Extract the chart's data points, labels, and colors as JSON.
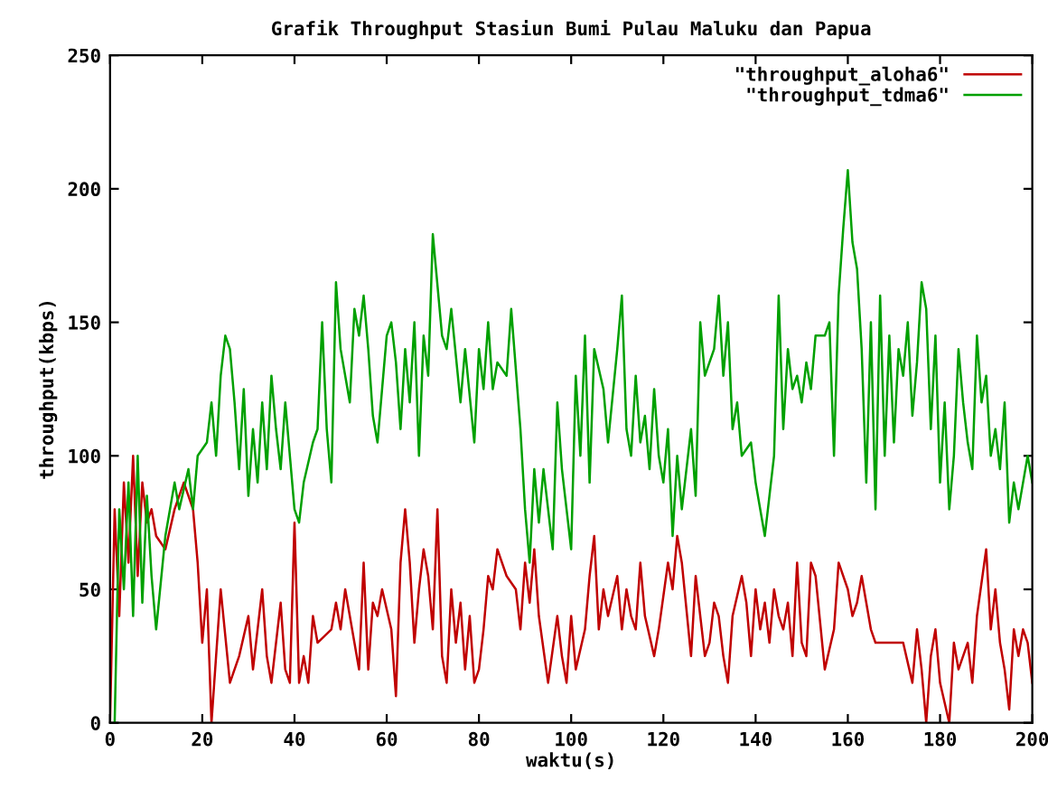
{
  "chart_data": {
    "type": "line",
    "title": "Grafik Throughput Stasiun Bumi Pulau Maluku dan Papua",
    "xlabel": "waktu(s)",
    "ylabel": "throughput(kbps)",
    "xlim": [
      0,
      200
    ],
    "xticks": [
      0,
      20,
      40,
      60,
      80,
      100,
      120,
      140,
      160,
      180,
      200
    ],
    "ylim": [
      0,
      250
    ],
    "yticks": [
      0,
      50,
      100,
      150,
      200,
      250
    ],
    "legend": "top right",
    "series": [
      {
        "name": "\"throughput_aloha6\"",
        "color": "#c00000",
        "x": [
          0,
          1,
          2,
          3,
          4,
          5,
          6,
          7,
          8,
          9,
          10,
          12,
          14,
          16,
          18,
          19,
          20,
          21,
          22,
          23,
          24,
          26,
          28,
          30,
          31,
          33,
          34,
          35,
          37,
          38,
          39,
          40,
          41,
          42,
          43,
          44,
          45,
          48,
          49,
          50,
          51,
          52,
          53,
          54,
          55,
          56,
          57,
          58,
          59,
          61,
          62,
          63,
          64,
          65,
          66,
          67,
          68,
          69,
          70,
          71,
          72,
          73,
          74,
          75,
          76,
          77,
          78,
          79,
          80,
          81,
          82,
          83,
          84,
          86,
          88,
          89,
          90,
          91,
          92,
          93,
          95,
          97,
          98,
          99,
          100,
          101,
          103,
          104,
          105,
          106,
          107,
          108,
          110,
          111,
          112,
          113,
          114,
          115,
          116,
          118,
          119,
          121,
          122,
          123,
          124,
          126,
          127,
          129,
          130,
          131,
          132,
          133,
          134,
          135,
          137,
          138,
          139,
          140,
          141,
          142,
          143,
          144,
          145,
          146,
          147,
          148,
          149,
          150,
          151,
          152,
          153,
          155,
          157,
          158,
          160,
          161,
          162,
          163,
          164,
          165,
          166,
          172,
          174,
          175,
          176,
          177,
          178,
          179,
          180,
          182,
          183,
          184,
          186,
          187,
          188,
          190,
          191,
          192,
          193,
          194,
          195,
          196,
          197,
          198,
          199,
          200
        ],
        "values": [
          0,
          80,
          40,
          90,
          60,
          100,
          55,
          90,
          75,
          80,
          70,
          65,
          80,
          90,
          80,
          60,
          30,
          50,
          0,
          25,
          50,
          15,
          25,
          40,
          20,
          50,
          25,
          15,
          45,
          20,
          15,
          75,
          15,
          25,
          15,
          40,
          30,
          35,
          45,
          35,
          50,
          40,
          30,
          20,
          60,
          20,
          45,
          40,
          50,
          35,
          10,
          60,
          80,
          60,
          30,
          50,
          65,
          55,
          35,
          80,
          25,
          15,
          50,
          30,
          45,
          20,
          40,
          15,
          20,
          35,
          55,
          50,
          65,
          55,
          50,
          35,
          60,
          45,
          65,
          40,
          15,
          40,
          25,
          15,
          40,
          20,
          35,
          55,
          70,
          35,
          50,
          40,
          55,
          35,
          50,
          40,
          35,
          60,
          40,
          25,
          35,
          60,
          50,
          70,
          60,
          25,
          55,
          25,
          30,
          45,
          40,
          25,
          15,
          40,
          55,
          45,
          25,
          50,
          35,
          45,
          30,
          50,
          40,
          35,
          45,
          25,
          60,
          30,
          25,
          60,
          55,
          20,
          35,
          60,
          50,
          40,
          45,
          55,
          45,
          35,
          30,
          30,
          15,
          35,
          20,
          0,
          25,
          35,
          15,
          0,
          30,
          20,
          30,
          15,
          40,
          65,
          35,
          50,
          30,
          20,
          5,
          35,
          25,
          35,
          30,
          15
        ]
      },
      {
        "name": "\"throughput_tdma6\"",
        "color": "#00a000",
        "x": [
          1,
          2,
          3,
          4,
          5,
          6,
          7,
          8,
          9,
          10,
          12,
          14,
          15,
          17,
          18,
          19,
          21,
          22,
          23,
          24,
          25,
          26,
          27,
          28,
          29,
          30,
          31,
          32,
          33,
          34,
          35,
          36,
          37,
          38,
          40,
          41,
          42,
          44,
          45,
          46,
          47,
          48,
          49,
          50,
          52,
          53,
          54,
          55,
          56,
          57,
          58,
          59,
          60,
          61,
          62,
          63,
          64,
          65,
          66,
          67,
          68,
          69,
          70,
          72,
          73,
          74,
          76,
          77,
          79,
          80,
          81,
          82,
          83,
          84,
          86,
          87,
          89,
          90,
          91,
          92,
          93,
          94,
          96,
          97,
          98,
          99,
          100,
          101,
          102,
          103,
          104,
          105,
          107,
          108,
          110,
          111,
          112,
          113,
          114,
          115,
          116,
          117,
          118,
          119,
          120,
          121,
          122,
          123,
          124,
          125,
          126,
          127,
          128,
          129,
          131,
          132,
          133,
          134,
          135,
          136,
          137,
          139,
          140,
          142,
          143,
          144,
          145,
          146,
          147,
          148,
          149,
          150,
          151,
          152,
          153,
          155,
          156,
          157,
          158,
          159,
          160,
          161,
          162,
          163,
          164,
          165,
          166,
          167,
          168,
          169,
          170,
          171,
          172,
          173,
          174,
          175,
          176,
          177,
          178,
          179,
          180,
          181,
          182,
          183,
          184,
          185,
          186,
          187,
          188,
          189,
          190,
          191,
          192,
          193,
          194,
          195,
          196,
          197,
          199,
          200
        ],
        "values": [
          0,
          80,
          50,
          90,
          40,
          100,
          45,
          85,
          55,
          35,
          70,
          90,
          80,
          95,
          80,
          100,
          105,
          120,
          100,
          130,
          145,
          140,
          120,
          95,
          125,
          85,
          110,
          90,
          120,
          95,
          130,
          110,
          95,
          120,
          80,
          75,
          90,
          105,
          110,
          150,
          110,
          90,
          165,
          140,
          120,
          155,
          145,
          160,
          140,
          115,
          105,
          125,
          145,
          150,
          135,
          110,
          140,
          120,
          150,
          100,
          145,
          130,
          183,
          145,
          140,
          155,
          120,
          140,
          105,
          140,
          125,
          150,
          125,
          135,
          130,
          155,
          110,
          80,
          60,
          95,
          75,
          95,
          65,
          120,
          95,
          80,
          65,
          130,
          100,
          145,
          90,
          140,
          125,
          105,
          140,
          160,
          110,
          100,
          130,
          105,
          115,
          95,
          125,
          100,
          90,
          110,
          70,
          100,
          80,
          95,
          110,
          85,
          150,
          130,
          140,
          160,
          130,
          150,
          110,
          120,
          100,
          105,
          90,
          70,
          85,
          100,
          160,
          110,
          140,
          125,
          130,
          120,
          135,
          125,
          145,
          145,
          150,
          100,
          160,
          185,
          207,
          180,
          170,
          140,
          90,
          150,
          80,
          160,
          100,
          145,
          105,
          140,
          130,
          150,
          115,
          135,
          165,
          155,
          110,
          145,
          90,
          120,
          80,
          100,
          140,
          120,
          105,
          95,
          145,
          120,
          130,
          100,
          110,
          95,
          120,
          75,
          90,
          80,
          100,
          90
        ]
      }
    ]
  }
}
